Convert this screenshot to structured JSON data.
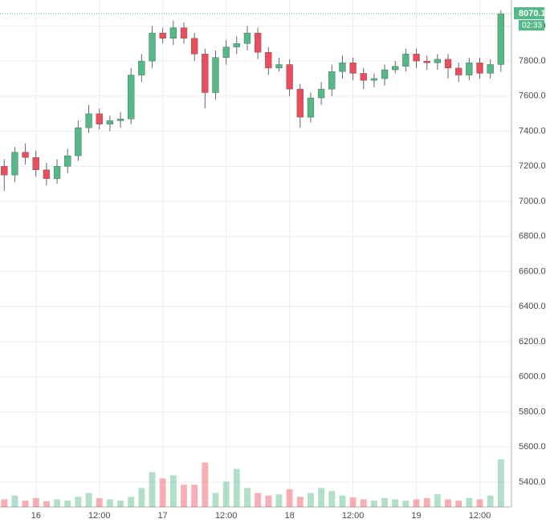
{
  "chart_data": {
    "type": "candlestick",
    "x": [
      -6,
      -4,
      -2,
      0,
      2,
      4,
      6,
      8,
      10,
      12,
      14,
      16,
      18,
      20,
      22,
      24,
      26,
      28,
      30,
      32,
      34,
      36,
      38,
      40,
      42,
      44,
      46,
      48,
      50,
      52,
      54,
      56,
      58,
      60,
      62,
      64,
      66,
      68,
      70,
      72,
      74,
      76,
      78,
      80,
      82,
      84,
      86,
      88
    ],
    "open": [
      7200,
      7150,
      7280,
      7250,
      7180,
      7130,
      7200,
      7260,
      7420,
      7500,
      7440,
      7460,
      7470,
      7720,
      7800,
      7960,
      7930,
      7990,
      7930,
      7840,
      7620,
      7820,
      7880,
      7900,
      7960,
      7850,
      7760,
      7780,
      7640,
      7480,
      7590,
      7640,
      7740,
      7790,
      7730,
      7690,
      7700,
      7750,
      7770,
      7840,
      7800,
      7790,
      7810,
      7760,
      7720,
      7790,
      7730,
      7780
    ],
    "high": [
      7240,
      7310,
      7330,
      7290,
      7220,
      7240,
      7300,
      7460,
      7550,
      7530,
      7490,
      7510,
      7760,
      7840,
      8000,
      7990,
      8030,
      8020,
      7960,
      7870,
      7860,
      7920,
      7940,
      8000,
      7990,
      7880,
      7820,
      7810,
      7670,
      7620,
      7680,
      7780,
      7830,
      7820,
      7760,
      7730,
      7780,
      7800,
      7870,
      7870,
      7830,
      7840,
      7840,
      7790,
      7820,
      7820,
      7810,
      8090
    ],
    "low": [
      7060,
      7110,
      7210,
      7140,
      7090,
      7100,
      7160,
      7230,
      7390,
      7410,
      7400,
      7420,
      7440,
      7680,
      7760,
      7900,
      7890,
      7900,
      7800,
      7530,
      7580,
      7780,
      7840,
      7860,
      7810,
      7720,
      7740,
      7600,
      7420,
      7450,
      7550,
      7600,
      7700,
      7690,
      7640,
      7650,
      7660,
      7730,
      7740,
      7760,
      7750,
      7750,
      7700,
      7680,
      7690,
      7700,
      7700,
      7740
    ],
    "close": [
      7150,
      7280,
      7250,
      7180,
      7130,
      7200,
      7260,
      7420,
      7500,
      7440,
      7460,
      7470,
      7720,
      7800,
      7960,
      7930,
      7990,
      7930,
      7840,
      7620,
      7820,
      7880,
      7900,
      7960,
      7850,
      7760,
      7780,
      7640,
      7480,
      7590,
      7640,
      7740,
      7790,
      7730,
      7690,
      7700,
      7750,
      7770,
      7840,
      7800,
      7790,
      7810,
      7760,
      7720,
      7790,
      7730,
      7780,
      8070
    ],
    "volume": {
      "axis": "y2",
      "values": [
        12,
        18,
        10,
        14,
        9,
        12,
        10,
        16,
        22,
        14,
        12,
        10,
        16,
        30,
        55,
        45,
        50,
        35,
        35,
        70,
        22,
        40,
        60,
        30,
        22,
        18,
        20,
        28,
        16,
        22,
        30,
        25,
        18,
        15,
        12,
        10,
        14,
        12,
        10,
        12,
        14,
        20,
        12,
        10,
        14,
        12,
        18,
        75
      ]
    },
    "up_color": "#53b987",
    "down_color": "#eb4d5c",
    "xlim": [
      -6.8,
      90
    ],
    "xticks": [
      {
        "value": 0,
        "label": "16"
      },
      {
        "value": 12,
        "label": "12:00"
      },
      {
        "value": 24,
        "label": "17"
      },
      {
        "value": 36,
        "label": "12:00"
      },
      {
        "value": 48,
        "label": "18"
      },
      {
        "value": 60,
        "label": "12:00"
      },
      {
        "value": 72,
        "label": "19"
      },
      {
        "value": 84,
        "label": "12:00"
      }
    ],
    "ylim": [
      5258,
      8148
    ],
    "yticks": [
      {
        "value": 5400,
        "label": "5400.0"
      },
      {
        "value": 5600,
        "label": "5600.0"
      },
      {
        "value": 5800,
        "label": "5800.0"
      },
      {
        "value": 6000,
        "label": "6000.0"
      },
      {
        "value": 6200,
        "label": "6200.0"
      },
      {
        "value": 6400,
        "label": "6400.0"
      },
      {
        "value": 6600,
        "label": "6600.0"
      },
      {
        "value": 6800,
        "label": "6800.0"
      },
      {
        "value": 7000,
        "label": "7000.0"
      },
      {
        "value": 7200,
        "label": "7200.0"
      },
      {
        "value": 7400,
        "label": "7400.0"
      },
      {
        "value": 7600,
        "label": "7600.0"
      },
      {
        "value": 7800,
        "label": "7800.0"
      },
      {
        "value": 8000,
        "label": "8000.0"
      }
    ],
    "y2lim": [
      0,
      800
    ],
    "grid": true,
    "last_price": 8070.1,
    "countdown": "02:33"
  }
}
